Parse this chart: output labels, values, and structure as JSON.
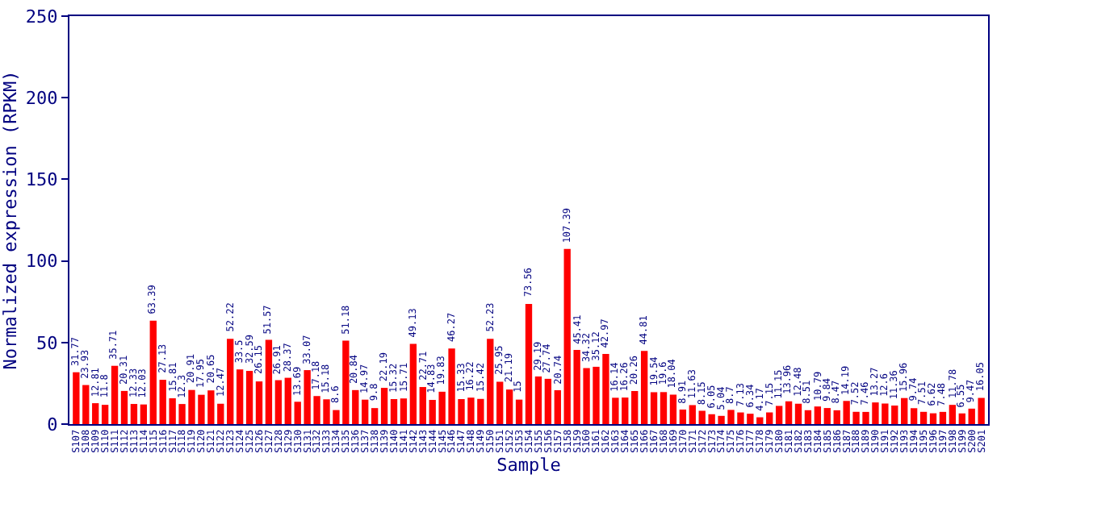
{
  "chart_data": {
    "type": "bar",
    "xlabel": "Sample",
    "ylabel": "Normalized expression (RPKM)",
    "categories": [
      "S107",
      "S108",
      "S109",
      "S110",
      "S111",
      "S112",
      "S113",
      "S114",
      "S115",
      "S116",
      "S117",
      "S118",
      "S119",
      "S120",
      "S121",
      "S122",
      "S123",
      "S124",
      "S125",
      "S126",
      "S127",
      "S128",
      "S129",
      "S130",
      "S131",
      "S132",
      "S133",
      "S134",
      "S135",
      "S136",
      "S137",
      "S138",
      "S139",
      "S140",
      "S141",
      "S142",
      "S143",
      "S144",
      "S145",
      "S146",
      "S147",
      "S148",
      "S149",
      "S150",
      "S151",
      "S152",
      "S153",
      "S154",
      "S155",
      "S156",
      "S157",
      "S158",
      "S159",
      "S160",
      "S161",
      "S162",
      "S163",
      "S164",
      "S165",
      "S166",
      "S167",
      "S168",
      "S169",
      "S170",
      "S171",
      "S172",
      "S173",
      "S174",
      "S175",
      "S176",
      "S177",
      "S178",
      "S179",
      "S180",
      "S181",
      "S182",
      "S183",
      "S184",
      "S185",
      "S186",
      "S187",
      "S188",
      "S189",
      "S190",
      "S191",
      "S192",
      "S193",
      "S194",
      "S195",
      "S196",
      "S197",
      "S198",
      "S199",
      "S200",
      "S201"
    ],
    "values": [
      31.77,
      23.93,
      12.81,
      11.8,
      35.71,
      20.31,
      12.33,
      12.03,
      63.39,
      27.13,
      15.81,
      12.3,
      20.91,
      17.95,
      20.65,
      12.47,
      52.22,
      33.5,
      32.59,
      26.15,
      51.57,
      26.91,
      28.37,
      13.69,
      33.07,
      17.18,
      15.18,
      8.6,
      51.18,
      20.84,
      14.97,
      9.8,
      22.19,
      15.32,
      15.71,
      49.13,
      22.71,
      14.83,
      19.83,
      46.27,
      15.33,
      16.22,
      15.42,
      52.23,
      25.95,
      21.19,
      15,
      73.56,
      29.19,
      27.74,
      20.74,
      107.39,
      45.41,
      34.32,
      35.12,
      42.97,
      16.14,
      16.26,
      20.26,
      44.81,
      19.54,
      19.6,
      18.04,
      8.91,
      11.63,
      8.15,
      6.05,
      5.04,
      8.7,
      7.13,
      6.34,
      4.17,
      7.15,
      11.15,
      13.96,
      12.48,
      8.51,
      10.79,
      9.84,
      8.47,
      14.19,
      7.52,
      7.46,
      13.27,
      12.6,
      11.36,
      15.96,
      9.74,
      7.51,
      6.62,
      7.48,
      11.78,
      6.55,
      9.47,
      16.05
    ],
    "color": "#ff0000",
    "ylim": [
      0,
      250
    ],
    "yticks": [
      0,
      50,
      100,
      150,
      200,
      250
    ],
    "data_labels": true
  }
}
